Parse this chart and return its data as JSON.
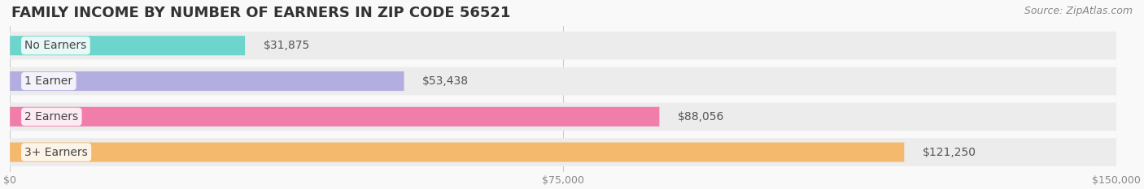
{
  "title": "FAMILY INCOME BY NUMBER OF EARNERS IN ZIP CODE 56521",
  "source": "Source: ZipAtlas.com",
  "categories": [
    "No Earners",
    "1 Earner",
    "2 Earners",
    "3+ Earners"
  ],
  "values": [
    31875,
    53438,
    88056,
    121250
  ],
  "labels": [
    "$31,875",
    "$53,438",
    "$88,056",
    "$121,250"
  ],
  "bar_colors": [
    "#6dd5cc",
    "#b3aee0",
    "#f07daa",
    "#f5b96e"
  ],
  "bar_bg_colors": [
    "#eeeeee",
    "#eeeeee",
    "#eeeeee",
    "#eeeeee"
  ],
  "xlim": [
    0,
    150000
  ],
  "xticks": [
    0,
    75000,
    150000
  ],
  "xtick_labels": [
    "$0",
    "$75,000",
    "$150,000"
  ],
  "background_color": "#f9f9f9",
  "title_fontsize": 13,
  "source_fontsize": 9,
  "label_fontsize": 10,
  "category_fontsize": 10,
  "tick_fontsize": 9
}
